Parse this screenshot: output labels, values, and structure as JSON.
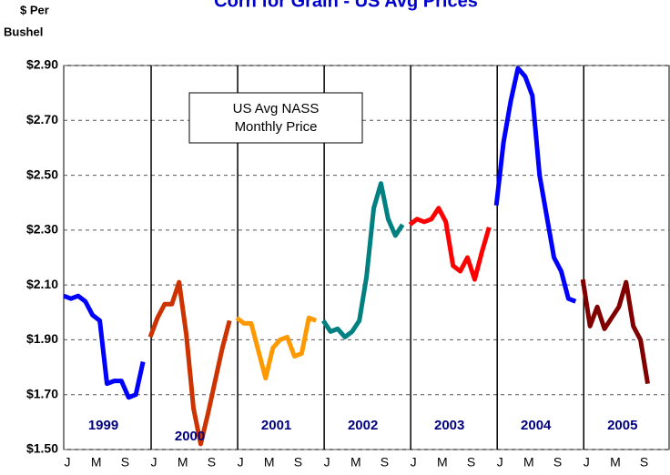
{
  "chart_data": {
    "type": "line",
    "title": "Corn for Grain - US Avg Prices",
    "y_label": [
      "$ Per",
      "Bushel"
    ],
    "annotation": [
      "US Avg NASS",
      "Monthly Price"
    ],
    "categories": [
      "J",
      null,
      null,
      null,
      "M",
      null,
      null,
      null,
      "S",
      null,
      null,
      null,
      "J",
      null,
      null,
      null,
      "M",
      null,
      null,
      null,
      "S",
      null,
      null,
      null,
      "J",
      null,
      null,
      null,
      "M",
      null,
      null,
      null,
      "S",
      null,
      null,
      null,
      "J",
      null,
      null,
      null,
      "M",
      null,
      null,
      null,
      "S",
      null,
      null,
      null,
      "J",
      null,
      null,
      null,
      "M",
      null,
      null,
      null,
      "S",
      null,
      null,
      null,
      "J",
      null,
      null,
      null,
      "M",
      null,
      null,
      null,
      "S",
      null,
      null,
      null,
      "J",
      null,
      null,
      null,
      "M",
      null,
      null,
      null,
      "S",
      null,
      null,
      null
    ],
    "series": [
      {
        "name": "1999",
        "color": "#0000ff",
        "values": [
          2.06,
          2.05,
          2.06,
          2.04,
          1.99,
          1.97,
          1.74,
          1.75,
          1.75,
          1.69,
          1.7,
          1.82,
          null,
          null,
          null,
          null,
          null,
          null,
          null,
          null,
          null,
          null,
          null,
          null,
          null,
          null,
          null,
          null,
          null,
          null,
          null,
          null,
          null,
          null,
          null,
          null,
          null,
          null,
          null,
          null,
          null,
          null,
          null,
          null,
          null,
          null,
          null,
          null,
          null,
          null,
          null,
          null,
          null,
          null,
          null,
          null,
          null,
          null,
          null,
          null,
          null,
          null,
          null,
          null,
          null,
          null,
          null,
          null,
          null,
          null,
          null,
          null,
          null,
          null,
          null,
          null,
          null,
          null,
          null,
          null,
          null,
          null,
          null,
          null
        ]
      },
      {
        "name": "2000",
        "color": "#cc3300",
        "values": [
          null,
          null,
          null,
          null,
          null,
          null,
          null,
          null,
          null,
          null,
          null,
          null,
          1.91,
          1.98,
          2.03,
          2.03,
          2.11,
          1.92,
          1.65,
          1.52,
          1.63,
          1.75,
          1.87,
          1.97,
          null,
          null,
          null,
          null,
          null,
          null,
          null,
          null,
          null,
          null,
          null,
          null,
          null,
          null,
          null,
          null,
          null,
          null,
          null,
          null,
          null,
          null,
          null,
          null,
          null,
          null,
          null,
          null,
          null,
          null,
          null,
          null,
          null,
          null,
          null,
          null,
          null,
          null,
          null,
          null,
          null,
          null,
          null,
          null,
          null,
          null,
          null,
          null,
          null,
          null,
          null,
          null,
          null,
          null,
          null,
          null,
          null,
          null,
          null,
          null
        ]
      },
      {
        "name": "2001",
        "color": "#ff9900",
        "values": [
          null,
          null,
          null,
          null,
          null,
          null,
          null,
          null,
          null,
          null,
          null,
          null,
          null,
          null,
          null,
          null,
          null,
          null,
          null,
          null,
          null,
          null,
          null,
          null,
          1.98,
          1.96,
          1.96,
          1.86,
          1.76,
          1.87,
          1.9,
          1.91,
          1.84,
          1.85,
          1.98,
          1.97,
          null,
          null,
          null,
          null,
          null,
          null,
          null,
          null,
          null,
          null,
          null,
          null,
          null,
          null,
          null,
          null,
          null,
          null,
          null,
          null,
          null,
          null,
          null,
          null,
          null,
          null,
          null,
          null,
          null,
          null,
          null,
          null,
          null,
          null,
          null,
          null,
          null,
          null,
          null,
          null,
          null,
          null,
          null,
          null,
          null,
          null,
          null,
          null
        ]
      },
      {
        "name": "2002",
        "color": "#008080",
        "values": [
          null,
          null,
          null,
          null,
          null,
          null,
          null,
          null,
          null,
          null,
          null,
          null,
          null,
          null,
          null,
          null,
          null,
          null,
          null,
          null,
          null,
          null,
          null,
          null,
          null,
          null,
          null,
          null,
          null,
          null,
          null,
          null,
          null,
          null,
          null,
          null,
          1.97,
          1.93,
          1.94,
          1.91,
          1.93,
          1.97,
          2.13,
          2.38,
          2.47,
          2.34,
          2.28,
          2.32,
          null,
          null,
          null,
          null,
          null,
          null,
          null,
          null,
          null,
          null,
          null,
          null,
          null,
          null,
          null,
          null,
          null,
          null,
          null,
          null,
          null,
          null,
          null,
          null,
          null,
          null,
          null,
          null,
          null,
          null,
          null,
          null,
          null,
          null,
          null,
          null
        ]
      },
      {
        "name": "2003",
        "color": "#ff0000",
        "values": [
          null,
          null,
          null,
          null,
          null,
          null,
          null,
          null,
          null,
          null,
          null,
          null,
          null,
          null,
          null,
          null,
          null,
          null,
          null,
          null,
          null,
          null,
          null,
          null,
          null,
          null,
          null,
          null,
          null,
          null,
          null,
          null,
          null,
          null,
          null,
          null,
          null,
          null,
          null,
          null,
          null,
          null,
          null,
          null,
          null,
          null,
          null,
          null,
          2.32,
          2.34,
          2.33,
          2.34,
          2.38,
          2.33,
          2.17,
          2.15,
          2.2,
          2.12,
          2.22,
          2.31,
          null,
          null,
          null,
          null,
          null,
          null,
          null,
          null,
          null,
          null,
          null,
          null,
          null,
          null,
          null,
          null,
          null,
          null,
          null,
          null,
          null,
          null,
          null,
          null
        ]
      },
      {
        "name": "2004",
        "color": "#0000ff",
        "values": [
          null,
          null,
          null,
          null,
          null,
          null,
          null,
          null,
          null,
          null,
          null,
          null,
          null,
          null,
          null,
          null,
          null,
          null,
          null,
          null,
          null,
          null,
          null,
          null,
          null,
          null,
          null,
          null,
          null,
          null,
          null,
          null,
          null,
          null,
          null,
          null,
          null,
          null,
          null,
          null,
          null,
          null,
          null,
          null,
          null,
          null,
          null,
          null,
          null,
          null,
          null,
          null,
          null,
          null,
          null,
          null,
          null,
          null,
          null,
          null,
          2.39,
          2.62,
          2.77,
          2.89,
          2.86,
          2.79,
          2.5,
          2.35,
          2.2,
          2.15,
          2.05,
          2.04,
          null,
          null,
          null,
          null,
          null,
          null,
          null,
          null,
          null,
          null,
          null,
          null
        ]
      },
      {
        "name": "2005",
        "color": "#800000",
        "values": [
          null,
          null,
          null,
          null,
          null,
          null,
          null,
          null,
          null,
          null,
          null,
          null,
          null,
          null,
          null,
          null,
          null,
          null,
          null,
          null,
          null,
          null,
          null,
          null,
          null,
          null,
          null,
          null,
          null,
          null,
          null,
          null,
          null,
          null,
          null,
          null,
          null,
          null,
          null,
          null,
          null,
          null,
          null,
          null,
          null,
          null,
          null,
          null,
          null,
          null,
          null,
          null,
          null,
          null,
          null,
          null,
          null,
          null,
          null,
          null,
          null,
          null,
          null,
          null,
          null,
          null,
          null,
          null,
          null,
          null,
          null,
          null,
          2.12,
          1.95,
          2.02,
          1.94,
          1.98,
          2.02,
          2.11,
          1.95,
          1.9,
          1.74,
          null,
          null
        ]
      }
    ],
    "ylim": [
      1.5,
      2.9
    ],
    "yticks": [
      {
        "value": 1.5,
        "label": "$1.50"
      },
      {
        "value": 1.7,
        "label": "$1.70"
      },
      {
        "value": 1.9,
        "label": "$1.90"
      },
      {
        "value": 2.1,
        "label": "$2.10"
      },
      {
        "value": 2.3,
        "label": "$2.30"
      },
      {
        "value": 2.5,
        "label": "$2.50"
      },
      {
        "value": 2.7,
        "label": "$2.70"
      },
      {
        "value": 2.9,
        "label": "$2.90"
      }
    ],
    "grid": true
  }
}
